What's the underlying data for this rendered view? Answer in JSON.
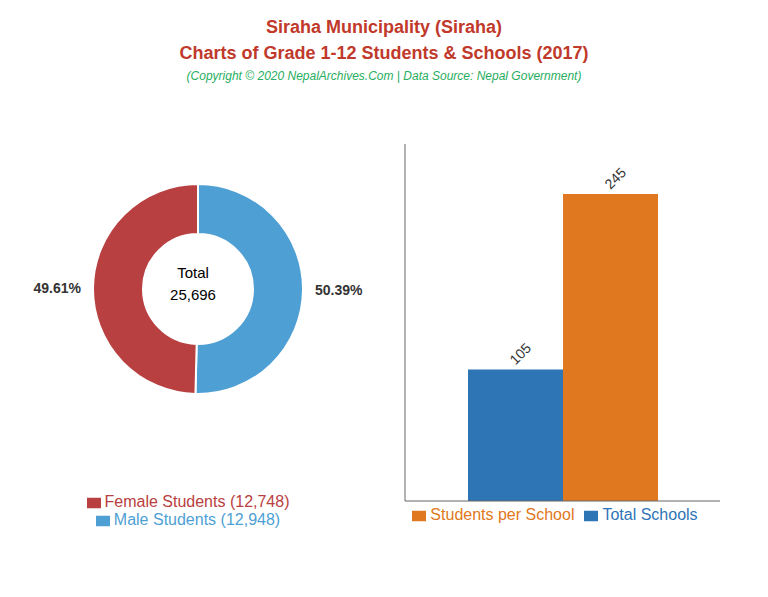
{
  "title": "Siraha Municipality (Siraha)",
  "subtitle": "Charts of Grade 1-12 Students & Schools (2017)",
  "annotations": [
    "(Copyright © 2020 NepalArchives.Com | Data Source: Nepal Government)"
  ],
  "chart_data": [
    {
      "type": "donut",
      "categories": [
        "Male Students (12,948)",
        "Female Students (12,748)"
      ],
      "values": [
        50.39,
        49.61
      ],
      "value_labels": [
        "50.39%",
        "49.61%"
      ],
      "colors": [
        "#4e9fd4",
        "#b94040"
      ],
      "data_labels": true,
      "annotations": [
        "Total",
        "25,696"
      ],
      "legend": "bottom"
    },
    {
      "type": "bar",
      "categories": [
        null
      ],
      "series": [
        {
          "name": "Total Schools",
          "color": "#2e75b6",
          "values": [
            105
          ]
        },
        {
          "name": "Students per School",
          "color": "#e07820",
          "values": [
            245
          ]
        }
      ],
      "ylim": [
        0,
        285
      ],
      "tick_labels": false,
      "data_labels": true,
      "legend": "bottom"
    }
  ]
}
